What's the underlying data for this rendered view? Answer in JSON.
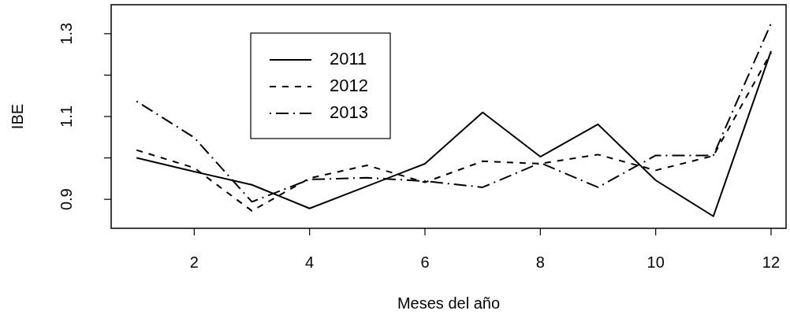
{
  "chart_data": {
    "type": "line",
    "xlabel": "Meses del año",
    "ylabel": "IBE",
    "x": [
      1,
      2,
      3,
      4,
      5,
      6,
      7,
      8,
      9,
      10,
      11,
      12
    ],
    "xlim": [
      0.56,
      12.26
    ],
    "xticks": [
      2,
      4,
      6,
      8,
      10,
      12
    ],
    "ylim": [
      0.83,
      1.37
    ],
    "yticks": [
      0.9,
      {
        "value": 1.0,
        "label": null
      },
      1.1,
      {
        "value": 1.2,
        "label": null
      },
      1.3
    ],
    "grid": false,
    "legend": "top left",
    "marker": "none",
    "series": [
      {
        "name": "2011",
        "color": "#000000",
        "line_style": "solid",
        "values": [
          1.0,
          0.967,
          0.935,
          0.878,
          0.932,
          0.986,
          1.11,
          1.003,
          1.081,
          0.946,
          0.859,
          1.258
        ]
      },
      {
        "name": "2012",
        "color": "#000000",
        "line_style": "dashed",
        "values": [
          1.019,
          0.976,
          0.872,
          0.951,
          0.982,
          0.941,
          0.992,
          0.986,
          1.008,
          0.97,
          1.005,
          1.254
        ]
      },
      {
        "name": "2013",
        "color": "#000000",
        "line_style": "dashdot",
        "values": [
          1.137,
          1.049,
          0.894,
          0.948,
          0.952,
          0.944,
          0.929,
          0.988,
          0.929,
          1.006,
          1.006,
          1.325
        ]
      }
    ]
  }
}
